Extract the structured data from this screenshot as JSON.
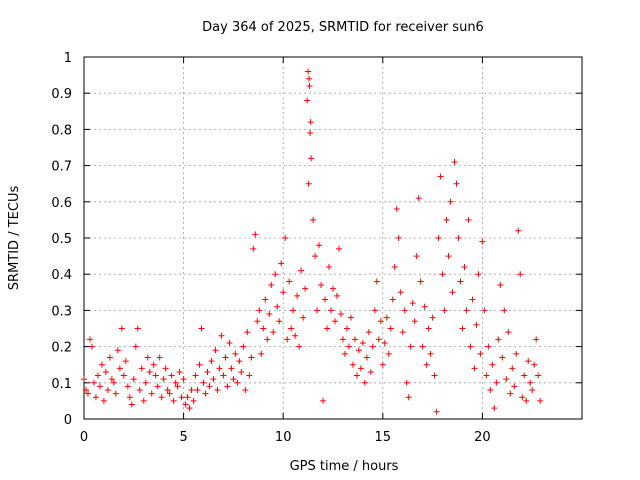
{
  "chart_data": {
    "type": "scatter",
    "title": "Day 364 of 2025, SRMTID for receiver sun6",
    "xlabel": "GPS time / hours",
    "ylabel": "SRMTID / TECUs",
    "xlim": [
      0,
      25
    ],
    "ylim": [
      0,
      1
    ],
    "grid": true,
    "marker": "+",
    "color": "#ff0000",
    "x_ticks": [
      0,
      5,
      10,
      15,
      20
    ],
    "x_tick_labels": [
      "0",
      "5",
      "10",
      "15",
      "20"
    ],
    "y_ticks": [
      0,
      0.1,
      0.2,
      0.3,
      0.4,
      0.5,
      0.6,
      0.7,
      0.8,
      0.9,
      1
    ],
    "y_tick_labels": [
      "0",
      "0.1",
      "0.2",
      "0.3",
      "0.4",
      "0.5",
      "0.6",
      "0.7",
      "0.8",
      "0.9",
      "1"
    ],
    "series": [
      {
        "name": "SRMTID",
        "points": [
          [
            0.0,
            0.11
          ],
          [
            0.1,
            0.08
          ],
          [
            0.2,
            0.07
          ],
          [
            0.3,
            0.22
          ],
          [
            0.4,
            0.2
          ],
          [
            0.5,
            0.1
          ],
          [
            0.6,
            0.06
          ],
          [
            0.7,
            0.12
          ],
          [
            0.8,
            0.09
          ],
          [
            0.9,
            0.15
          ],
          [
            1.0,
            0.05
          ],
          [
            1.1,
            0.13
          ],
          [
            1.2,
            0.08
          ],
          [
            1.3,
            0.17
          ],
          [
            1.4,
            0.11
          ],
          [
            1.5,
            0.1
          ],
          [
            1.6,
            0.07
          ],
          [
            1.7,
            0.19
          ],
          [
            1.8,
            0.14
          ],
          [
            1.9,
            0.25
          ],
          [
            2.0,
            0.12
          ],
          [
            2.1,
            0.16
          ],
          [
            2.2,
            0.09
          ],
          [
            2.3,
            0.06
          ],
          [
            2.4,
            0.04
          ],
          [
            2.5,
            0.11
          ],
          [
            2.6,
            0.2
          ],
          [
            2.7,
            0.25
          ],
          [
            2.8,
            0.08
          ],
          [
            2.9,
            0.14
          ],
          [
            3.0,
            0.05
          ],
          [
            3.1,
            0.1
          ],
          [
            3.2,
            0.17
          ],
          [
            3.3,
            0.13
          ],
          [
            3.4,
            0.07
          ],
          [
            3.5,
            0.15
          ],
          [
            3.6,
            0.12
          ],
          [
            3.7,
            0.09
          ],
          [
            3.8,
            0.17
          ],
          [
            3.9,
            0.06
          ],
          [
            4.0,
            0.11
          ],
          [
            4.1,
            0.14
          ],
          [
            4.2,
            0.08
          ],
          [
            4.3,
            0.07
          ],
          [
            4.4,
            0.12
          ],
          [
            4.5,
            0.05
          ],
          [
            4.6,
            0.1
          ],
          [
            4.7,
            0.09
          ],
          [
            4.8,
            0.13
          ],
          [
            4.9,
            0.06
          ],
          [
            5.0,
            0.11
          ],
          [
            5.1,
            0.04
          ],
          [
            5.2,
            0.06
          ],
          [
            5.3,
            0.03
          ],
          [
            5.4,
            0.08
          ],
          [
            5.5,
            0.05
          ],
          [
            5.6,
            0.12
          ],
          [
            5.7,
            0.08
          ],
          [
            5.8,
            0.15
          ],
          [
            5.9,
            0.25
          ],
          [
            6.0,
            0.1
          ],
          [
            6.1,
            0.07
          ],
          [
            6.2,
            0.13
          ],
          [
            6.3,
            0.09
          ],
          [
            6.4,
            0.16
          ],
          [
            6.5,
            0.11
          ],
          [
            6.6,
            0.19
          ],
          [
            6.7,
            0.08
          ],
          [
            6.8,
            0.14
          ],
          [
            6.9,
            0.23
          ],
          [
            7.0,
            0.12
          ],
          [
            7.1,
            0.17
          ],
          [
            7.2,
            0.09
          ],
          [
            7.3,
            0.21
          ],
          [
            7.4,
            0.14
          ],
          [
            7.5,
            0.11
          ],
          [
            7.6,
            0.18
          ],
          [
            7.7,
            0.1
          ],
          [
            7.8,
            0.16
          ],
          [
            7.9,
            0.13
          ],
          [
            8.0,
            0.2
          ],
          [
            8.1,
            0.08
          ],
          [
            8.2,
            0.24
          ],
          [
            8.3,
            0.12
          ],
          [
            8.4,
            0.17
          ],
          [
            8.5,
            0.47
          ],
          [
            8.6,
            0.51
          ],
          [
            8.7,
            0.27
          ],
          [
            8.8,
            0.3
          ],
          [
            8.9,
            0.18
          ],
          [
            9.0,
            0.25
          ],
          [
            9.1,
            0.33
          ],
          [
            9.2,
            0.22
          ],
          [
            9.3,
            0.29
          ],
          [
            9.4,
            0.37
          ],
          [
            9.5,
            0.24
          ],
          [
            9.6,
            0.4
          ],
          [
            9.7,
            0.31
          ],
          [
            9.8,
            0.27
          ],
          [
            9.9,
            0.43
          ],
          [
            10.0,
            0.35
          ],
          [
            10.1,
            0.5
          ],
          [
            10.2,
            0.22
          ],
          [
            10.3,
            0.38
          ],
          [
            10.4,
            0.25
          ],
          [
            10.5,
            0.3
          ],
          [
            10.6,
            0.23
          ],
          [
            10.7,
            0.34
          ],
          [
            10.8,
            0.2
          ],
          [
            10.9,
            0.41
          ],
          [
            11.0,
            0.28
          ],
          [
            11.1,
            0.36
          ],
          [
            11.2,
            0.88
          ],
          [
            11.25,
            0.96
          ],
          [
            11.3,
            0.94
          ],
          [
            11.32,
            0.92
          ],
          [
            11.35,
            0.79
          ],
          [
            11.38,
            0.82
          ],
          [
            11.4,
            0.72
          ],
          [
            11.28,
            0.65
          ],
          [
            11.5,
            0.55
          ],
          [
            11.6,
            0.45
          ],
          [
            11.7,
            0.3
          ],
          [
            11.8,
            0.48
          ],
          [
            11.9,
            0.37
          ],
          [
            12.0,
            0.05
          ],
          [
            12.1,
            0.33
          ],
          [
            12.2,
            0.25
          ],
          [
            12.3,
            0.42
          ],
          [
            12.4,
            0.3
          ],
          [
            12.5,
            0.36
          ],
          [
            12.6,
            0.27
          ],
          [
            12.7,
            0.34
          ],
          [
            12.8,
            0.47
          ],
          [
            12.9,
            0.29
          ],
          [
            13.0,
            0.22
          ],
          [
            13.1,
            0.18
          ],
          [
            13.2,
            0.25
          ],
          [
            13.3,
            0.2
          ],
          [
            13.4,
            0.28
          ],
          [
            13.5,
            0.15
          ],
          [
            13.6,
            0.22
          ],
          [
            13.7,
            0.12
          ],
          [
            13.8,
            0.19
          ],
          [
            13.9,
            0.14
          ],
          [
            14.0,
            0.21
          ],
          [
            14.1,
            0.1
          ],
          [
            14.2,
            0.17
          ],
          [
            14.3,
            0.24
          ],
          [
            14.4,
            0.13
          ],
          [
            14.5,
            0.2
          ],
          [
            14.6,
            0.3
          ],
          [
            14.7,
            0.38
          ],
          [
            14.8,
            0.22
          ],
          [
            14.9,
            0.27
          ],
          [
            15.0,
            0.15
          ],
          [
            15.1,
            0.21
          ],
          [
            15.2,
            0.28
          ],
          [
            15.3,
            0.18
          ],
          [
            15.4,
            0.25
          ],
          [
            15.5,
            0.33
          ],
          [
            15.6,
            0.42
          ],
          [
            15.7,
            0.58
          ],
          [
            15.8,
            0.5
          ],
          [
            15.9,
            0.35
          ],
          [
            16.0,
            0.24
          ],
          [
            16.1,
            0.3
          ],
          [
            16.2,
            0.1
          ],
          [
            16.3,
            0.06
          ],
          [
            16.4,
            0.2
          ],
          [
            16.5,
            0.32
          ],
          [
            16.6,
            0.27
          ],
          [
            16.7,
            0.45
          ],
          [
            16.8,
            0.61
          ],
          [
            16.9,
            0.38
          ],
          [
            17.0,
            0.2
          ],
          [
            17.1,
            0.31
          ],
          [
            17.2,
            0.15
          ],
          [
            17.3,
            0.25
          ],
          [
            17.4,
            0.18
          ],
          [
            17.5,
            0.28
          ],
          [
            17.6,
            0.12
          ],
          [
            17.7,
            0.02
          ],
          [
            17.8,
            0.5
          ],
          [
            17.9,
            0.67
          ],
          [
            18.0,
            0.4
          ],
          [
            18.1,
            0.3
          ],
          [
            18.2,
            0.55
          ],
          [
            18.3,
            0.45
          ],
          [
            18.4,
            0.6
          ],
          [
            18.5,
            0.35
          ],
          [
            18.6,
            0.71
          ],
          [
            18.7,
            0.65
          ],
          [
            18.8,
            0.5
          ],
          [
            18.9,
            0.38
          ],
          [
            19.0,
            0.25
          ],
          [
            19.1,
            0.42
          ],
          [
            19.2,
            0.3
          ],
          [
            19.3,
            0.55
          ],
          [
            19.4,
            0.2
          ],
          [
            19.5,
            0.33
          ],
          [
            19.6,
            0.14
          ],
          [
            19.7,
            0.26
          ],
          [
            19.8,
            0.4
          ],
          [
            19.9,
            0.18
          ],
          [
            20.0,
            0.49
          ],
          [
            20.1,
            0.3
          ],
          [
            20.2,
            0.12
          ],
          [
            20.3,
            0.2
          ],
          [
            20.4,
            0.08
          ],
          [
            20.5,
            0.15
          ],
          [
            20.6,
            0.03
          ],
          [
            20.7,
            0.1
          ],
          [
            20.8,
            0.22
          ],
          [
            20.9,
            0.37
          ],
          [
            21.0,
            0.17
          ],
          [
            21.1,
            0.3
          ],
          [
            21.2,
            0.11
          ],
          [
            21.3,
            0.24
          ],
          [
            21.4,
            0.07
          ],
          [
            21.5,
            0.14
          ],
          [
            21.6,
            0.09
          ],
          [
            21.7,
            0.18
          ],
          [
            21.8,
            0.52
          ],
          [
            21.9,
            0.4
          ],
          [
            22.0,
            0.06
          ],
          [
            22.1,
            0.12
          ],
          [
            22.2,
            0.05
          ],
          [
            22.3,
            0.16
          ],
          [
            22.4,
            0.1
          ],
          [
            22.5,
            0.08
          ],
          [
            22.6,
            0.15
          ],
          [
            22.7,
            0.22
          ],
          [
            22.8,
            0.12
          ],
          [
            22.9,
            0.05
          ]
        ]
      }
    ]
  }
}
